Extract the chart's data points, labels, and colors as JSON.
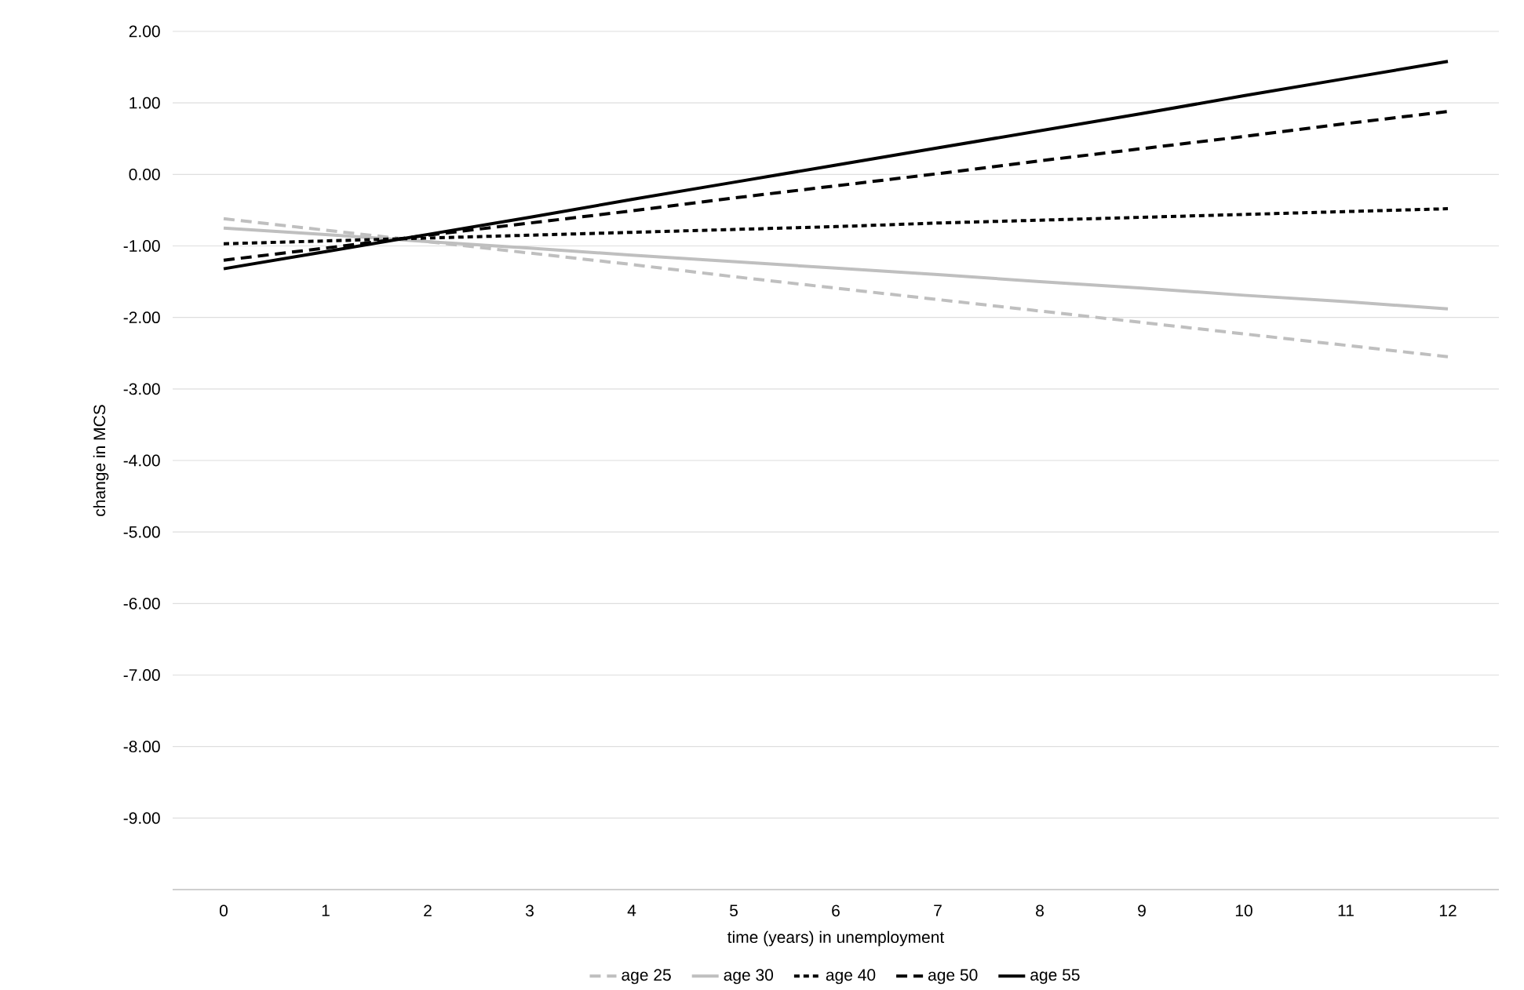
{
  "chart_data": {
    "type": "line",
    "xlabel": "time (years) in unemployment",
    "ylabel": "change in MCS",
    "categories": [
      "0",
      "1",
      "2",
      "3",
      "4",
      "5",
      "6",
      "7",
      "8",
      "9",
      "10",
      "11",
      "12"
    ],
    "series": [
      {
        "name": "age 25",
        "color": "#bfbfbf",
        "line_style": "dashed",
        "values": [
          -0.62,
          -0.78,
          -0.94,
          -1.1,
          -1.26,
          -1.43,
          -1.59,
          -1.75,
          -1.91,
          -2.07,
          -2.23,
          -2.39,
          -2.55
        ]
      },
      {
        "name": "age 30",
        "color": "#bfbfbf",
        "line_style": "solid",
        "values": [
          -0.75,
          -0.84,
          -0.94,
          -1.03,
          -1.13,
          -1.22,
          -1.31,
          -1.4,
          -1.5,
          -1.59,
          -1.69,
          -1.78,
          -1.88
        ]
      },
      {
        "name": "age 40",
        "color": "#000000",
        "line_style": "dotted",
        "values": [
          -0.97,
          -0.93,
          -0.89,
          -0.85,
          -0.81,
          -0.77,
          -0.73,
          -0.68,
          -0.64,
          -0.6,
          -0.56,
          -0.52,
          -0.48
        ]
      },
      {
        "name": "age 50",
        "color": "#000000",
        "line_style": "dashed",
        "values": [
          -1.2,
          -1.03,
          -0.85,
          -0.68,
          -0.51,
          -0.33,
          -0.16,
          0.01,
          0.19,
          0.36,
          0.53,
          0.71,
          0.88
        ]
      },
      {
        "name": "age 55",
        "color": "#000000",
        "line_style": "solid",
        "values": [
          -1.32,
          -1.08,
          -0.84,
          -0.6,
          -0.35,
          -0.11,
          0.13,
          0.37,
          0.61,
          0.85,
          1.1,
          1.34,
          1.58
        ]
      }
    ],
    "ylim": [
      -10,
      2
    ],
    "yticks": [
      {
        "value": -9,
        "label": "-9.00"
      },
      {
        "value": -8,
        "label": "-8.00"
      },
      {
        "value": -7,
        "label": "-7.00"
      },
      {
        "value": -6,
        "label": "-6.00"
      },
      {
        "value": -5,
        "label": "-5.00"
      },
      {
        "value": -4,
        "label": "-4.00"
      },
      {
        "value": -3,
        "label": "-3.00"
      },
      {
        "value": -2,
        "label": "-2.00"
      },
      {
        "value": -1,
        "label": "-1.00"
      },
      {
        "value": 0,
        "label": "0.00"
      },
      {
        "value": 1,
        "label": "1.00"
      },
      {
        "value": 2,
        "label": "2.00"
      }
    ],
    "grid": "y",
    "legend": "bottom",
    "marker": "none"
  }
}
